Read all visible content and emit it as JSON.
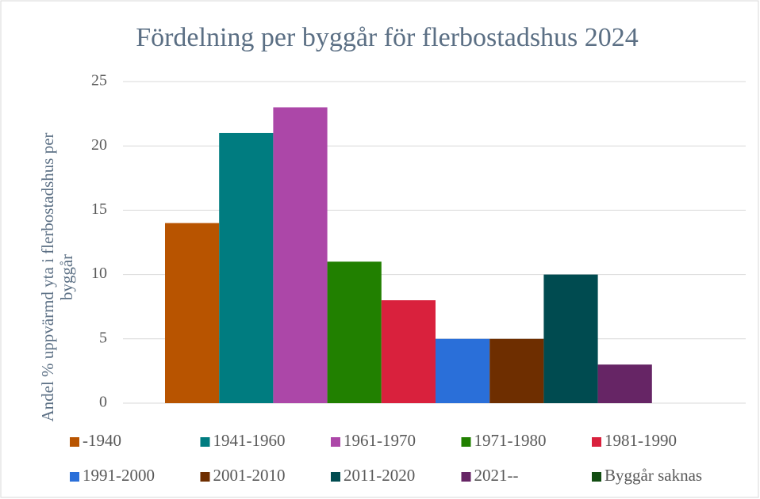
{
  "chart_data": {
    "type": "bar",
    "title": "Fördelning per byggår för flerbostadshus 2024",
    "y_label": "Andel % uppvärmd yta i flerbostadshus per byggår",
    "series": [
      {
        "name": "-1940",
        "color": "#b85400",
        "values": [
          14
        ]
      },
      {
        "name": "1941-1960",
        "color": "#007c80",
        "values": [
          21
        ]
      },
      {
        "name": "1961-1970",
        "color": "#ac47a8",
        "values": [
          23
        ]
      },
      {
        "name": "1971-1980",
        "color": "#218000",
        "values": [
          11
        ]
      },
      {
        "name": "1981-1990",
        "color": "#d9213d",
        "values": [
          8
        ]
      },
      {
        "name": "1991-2000",
        "color": "#2a6fd9",
        "values": [
          5
        ]
      },
      {
        "name": "2001-2010",
        "color": "#6e2e00",
        "values": [
          5
        ]
      },
      {
        "name": "2011-2020",
        "color": "#004b50",
        "values": [
          10
        ]
      },
      {
        "name": "2021--",
        "color": "#662565",
        "values": [
          3
        ]
      },
      {
        "name": "Byggår saknas",
        "color": "#124d12",
        "values": [
          0
        ]
      }
    ],
    "ylim": [
      0,
      25
    ],
    "yticks": [
      0,
      5,
      10,
      15,
      20,
      25
    ],
    "grid": true,
    "legend": "bottom"
  }
}
